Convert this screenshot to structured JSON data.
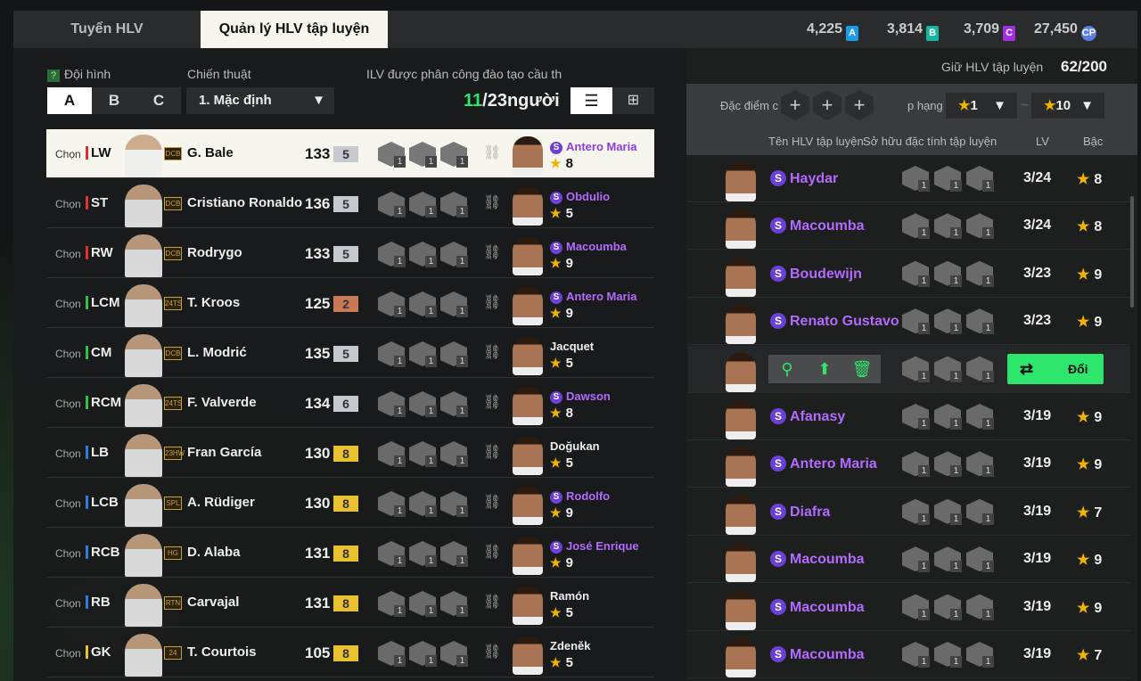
{
  "tabs": [
    "Tuyển HLV",
    "Quản lý HLV tập luyện"
  ],
  "currencies": [
    {
      "value": "4,225",
      "badge": "A",
      "color": "#1e9be8"
    },
    {
      "value": "3,814",
      "badge": "B",
      "color": "#16b5a0"
    },
    {
      "value": "3,709",
      "badge": "C",
      "color": "#a52de0"
    },
    {
      "value": "27,450",
      "badge": "CP",
      "color": "#5a7fe0"
    }
  ],
  "left": {
    "help": "?",
    "formation_label": "Đội hình",
    "formations": [
      "A",
      "B",
      "C"
    ],
    "selected_formation": "A",
    "tactic_label": "Chiến thuật",
    "tactic_value": "1. Mặc định",
    "assigned_label": "ILV được phân công đào tạo cầu th",
    "assigned_count": "11",
    "assigned_total": "/23người",
    "chon": "Chọn"
  },
  "players": [
    {
      "pos": "LW",
      "pc": "#e03030",
      "season": "DCB",
      "name": "G. Bale",
      "ovr": "133",
      "grade": "5",
      "gc": "#c8c8d0",
      "coach": "Antero Maria",
      "special": true,
      "stars": "8"
    },
    {
      "pos": "ST",
      "pc": "#e03030",
      "season": "DCB",
      "name": "Cristiano Ronaldo",
      "ovr": "136",
      "grade": "5",
      "gc": "#c8c8d0",
      "coach": "Obdulio",
      "special": true,
      "stars": "5"
    },
    {
      "pos": "RW",
      "pc": "#e03030",
      "season": "DCB",
      "name": "Rodrygo",
      "ovr": "133",
      "grade": "5",
      "gc": "#c8c8d0",
      "coach": "Macoumba",
      "special": true,
      "stars": "9"
    },
    {
      "pos": "LCM",
      "pc": "#2fbf4a",
      "season": "24TS",
      "name": "T. Kroos",
      "ovr": "125",
      "grade": "2",
      "gc": "#c97a55",
      "coach": "Antero Maria",
      "special": true,
      "stars": "9"
    },
    {
      "pos": "CM",
      "pc": "#2fbf4a",
      "season": "DCB",
      "name": "L. Modrić",
      "ovr": "135",
      "grade": "5",
      "gc": "#c8c8d0",
      "coach": "Jacquet",
      "special": false,
      "stars": "5"
    },
    {
      "pos": "RCM",
      "pc": "#2fbf4a",
      "season": "24TS",
      "name": "F. Valverde",
      "ovr": "134",
      "grade": "6",
      "gc": "#c8c8d0",
      "coach": "Dawson",
      "special": true,
      "stars": "8"
    },
    {
      "pos": "LB",
      "pc": "#2f7fe0",
      "season": "23HW",
      "name": "Fran García",
      "ovr": "130",
      "grade": "8",
      "gc": "#e8c030",
      "coach": "Doğukan",
      "special": false,
      "stars": "5"
    },
    {
      "pos": "LCB",
      "pc": "#2f7fe0",
      "season": "SPL",
      "name": "A. Rüdiger",
      "ovr": "130",
      "grade": "8",
      "gc": "#e8c030",
      "coach": "Rodolfo",
      "special": true,
      "stars": "9"
    },
    {
      "pos": "RCB",
      "pc": "#2f7fe0",
      "season": "HG",
      "name": "D. Alaba",
      "ovr": "131",
      "grade": "8",
      "gc": "#e8c030",
      "coach": "José Enrique",
      "special": true,
      "stars": "9"
    },
    {
      "pos": "RB",
      "pc": "#2f7fe0",
      "season": "RTN",
      "name": "Carvajal",
      "ovr": "131",
      "grade": "8",
      "gc": "#e8c030",
      "coach": "Ramón",
      "special": false,
      "stars": "5"
    },
    {
      "pos": "GK",
      "pc": "#e8c030",
      "season": "24",
      "name": "T. Courtois",
      "ovr": "105",
      "grade": "8",
      "gc": "#e8c030",
      "coach": "Zdeněk",
      "special": false,
      "stars": "5"
    }
  ],
  "right": {
    "keep_label": "Giữ HLV tập luyện",
    "keep_value": "62/200",
    "trait_filter_label": "Đặc điểm c",
    "rank_label": "p hạng",
    "rank_min": "1",
    "rank_max": "10",
    "tilde": "~",
    "col_name": "Tên HLV tập luyện",
    "col_traits": "Sở hữu đặc tính tập luyện",
    "col_lv": "LV",
    "col_grade": "Bậc",
    "swap_label": "Đổi"
  },
  "coaches": [
    {
      "name": "Haydar",
      "lv": "3/24",
      "grade": "8"
    },
    {
      "name": "Macoumba",
      "lv": "3/24",
      "grade": "8"
    },
    {
      "name": "Boudewijn",
      "lv": "3/23",
      "grade": "9"
    },
    {
      "name": "Renato Gustavo",
      "lv": "3/23",
      "grade": "9"
    },
    {
      "selected": true
    },
    {
      "name": "Afanasy",
      "lv": "3/19",
      "grade": "9"
    },
    {
      "name": "Antero Maria",
      "lv": "3/19",
      "grade": "9"
    },
    {
      "name": "Diafra",
      "lv": "3/19",
      "grade": "7"
    },
    {
      "name": "Macoumba",
      "lv": "3/19",
      "grade": "9"
    },
    {
      "name": "Macoumba",
      "lv": "3/19",
      "grade": "9"
    },
    {
      "name": "Macoumba",
      "lv": "3/19",
      "grade": "7"
    }
  ]
}
